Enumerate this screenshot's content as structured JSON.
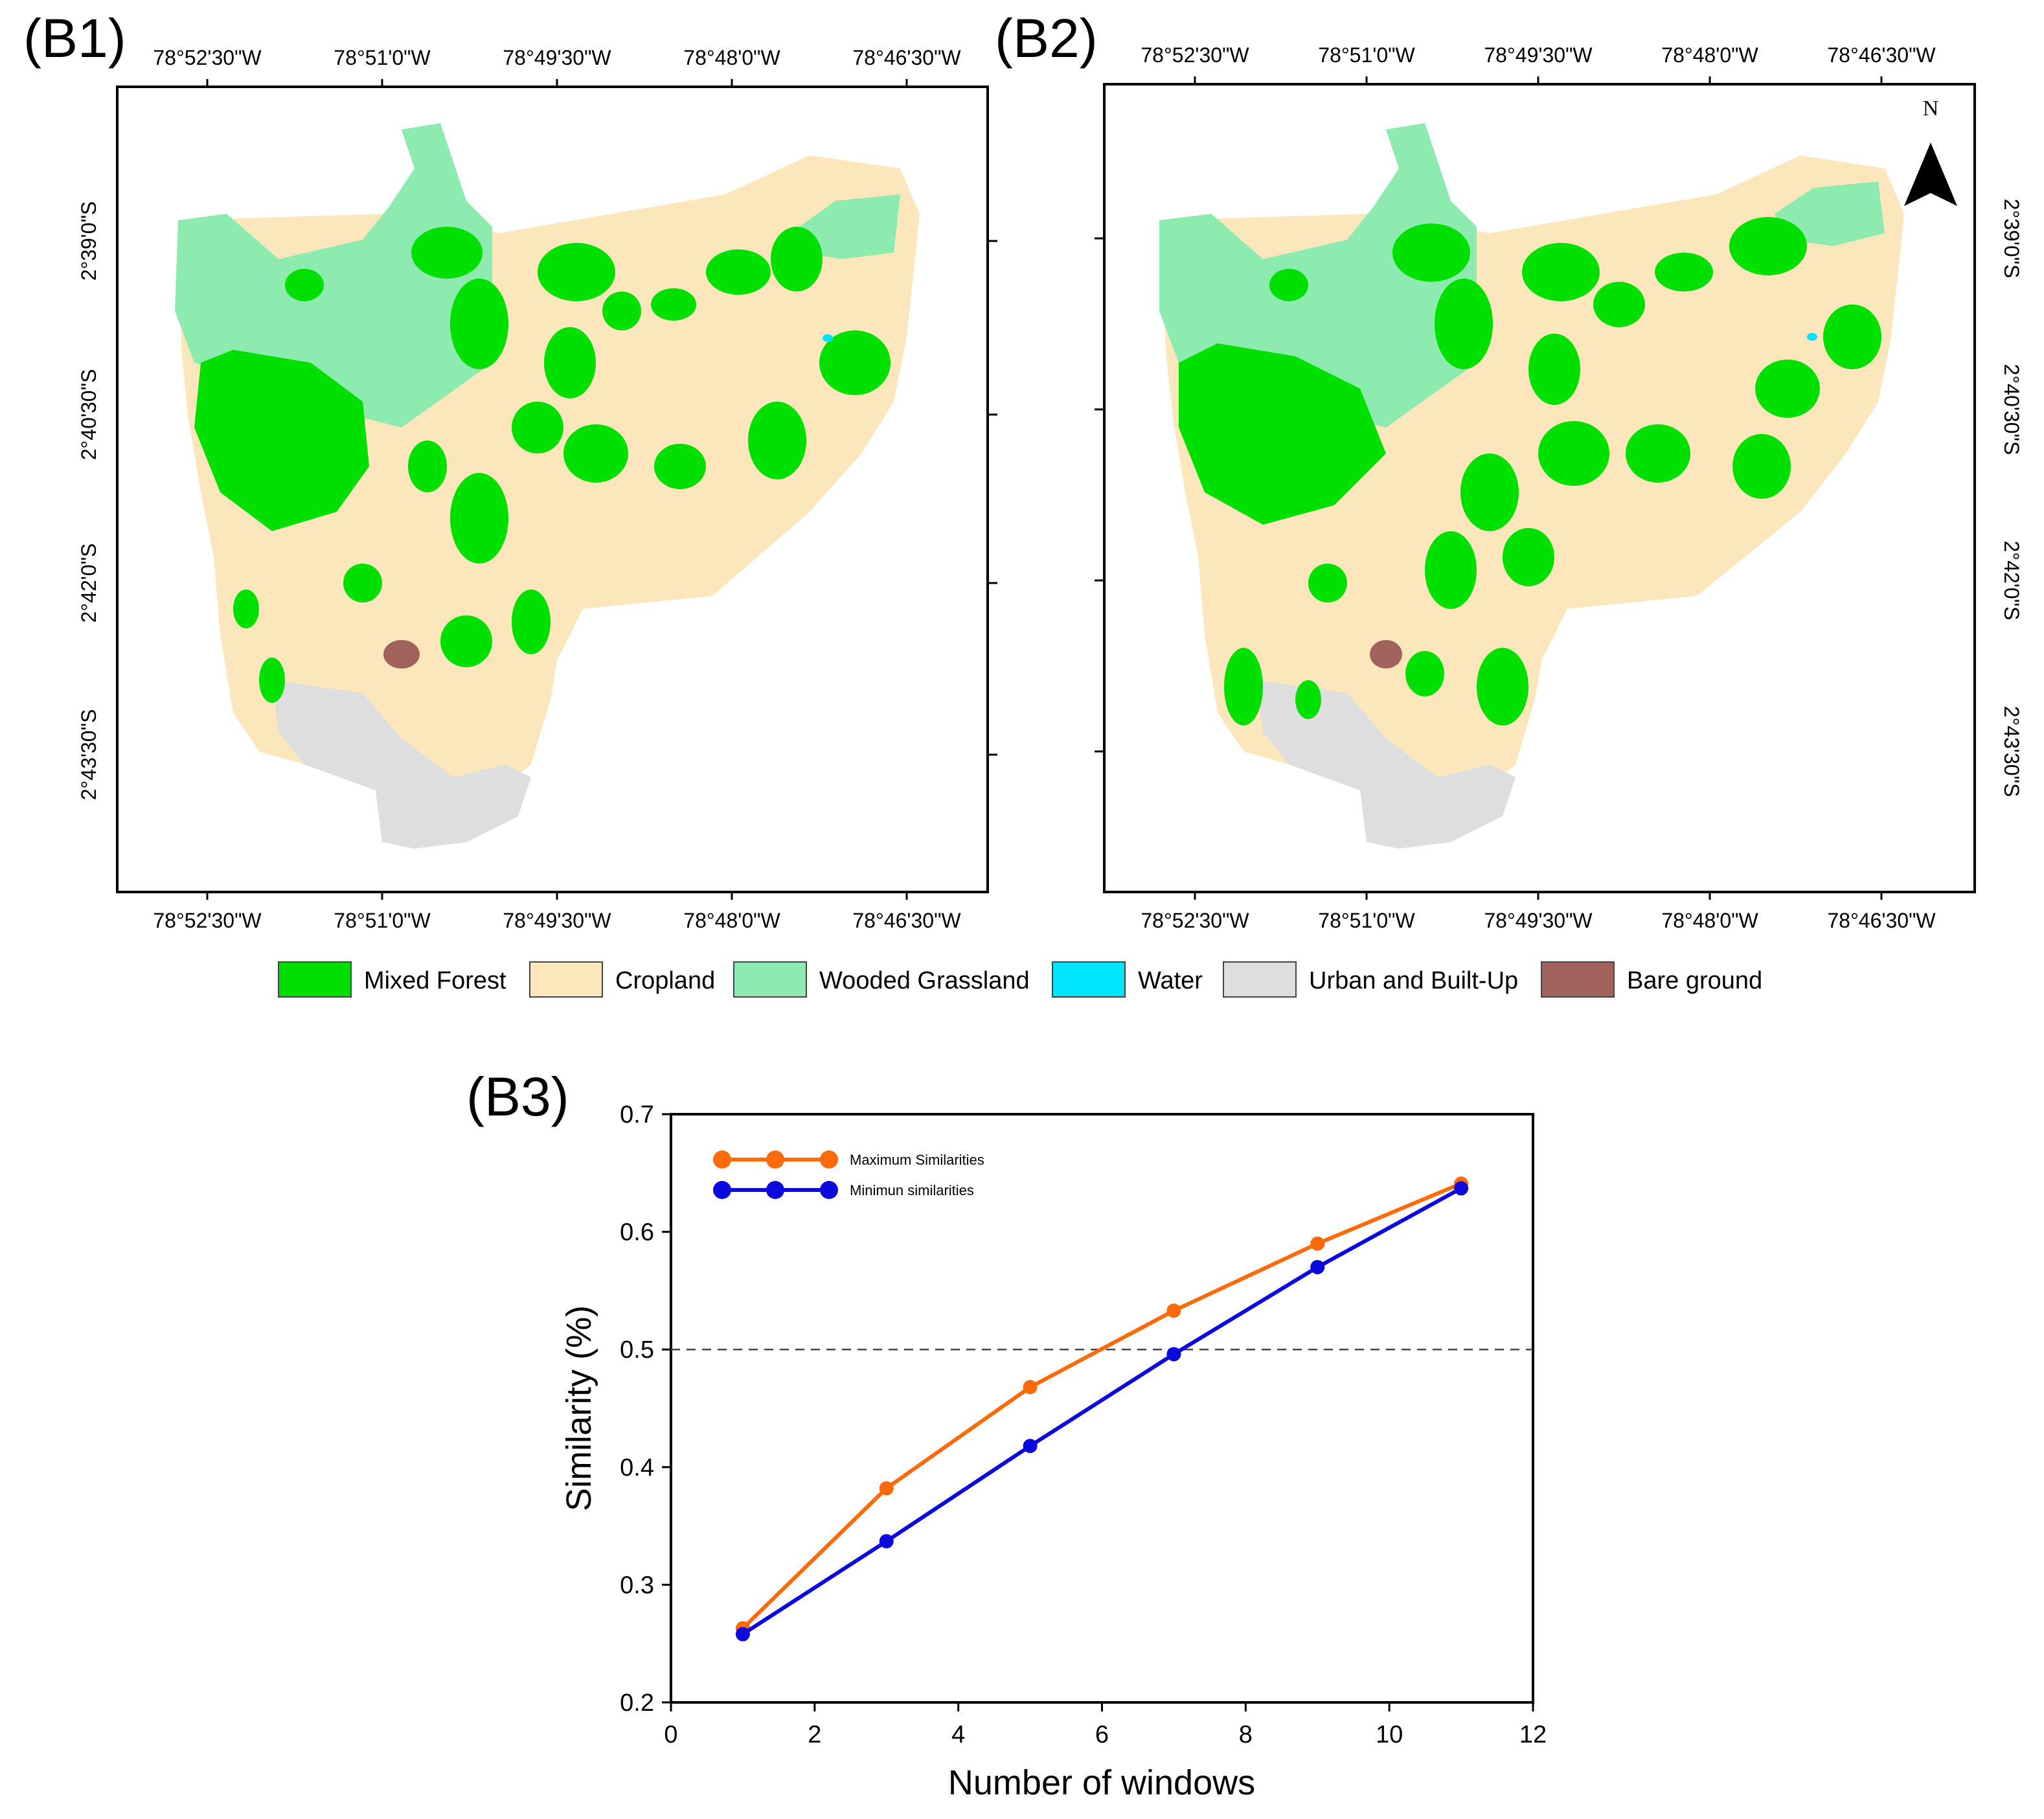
{
  "figure": {
    "panel_b1": "(B1)",
    "panel_b2": "(B2)",
    "panel_b3": "(B3)"
  },
  "maps": {
    "lon_labels": [
      "78°52'30\"W",
      "78°51'0\"W",
      "78°49'30\"W",
      "78°48'0\"W",
      "78°46'30\"W"
    ],
    "lat_labels": [
      "2°39'0\"S",
      "2°40'30\"S",
      "2°42'0\"S",
      "2°43'30\"S"
    ],
    "north_label": "N",
    "legend": [
      {
        "label": "Mixed Forest",
        "color": "#00E000"
      },
      {
        "label": "Cropland",
        "color": "#FCE6BC"
      },
      {
        "label": "Wooded Grassland",
        "color": "#8DEBAF"
      },
      {
        "label": "Water",
        "color": "#00E5FF"
      },
      {
        "label": "Urban and Built-Up",
        "color": "#DEDEDE"
      },
      {
        "label": "Bare ground",
        "color": "#A0625A"
      }
    ]
  },
  "chart_data": {
    "type": "line",
    "title": "",
    "xlabel": "Number of windows",
    "ylabel": "Similarity (%)",
    "xlim": [
      0,
      12
    ],
    "ylim": [
      0.2,
      0.7
    ],
    "xticks": [
      0,
      2,
      4,
      6,
      8,
      10,
      12
    ],
    "yticks": [
      0.2,
      0.3,
      0.4,
      0.5,
      0.6,
      0.7
    ],
    "x": [
      1,
      3,
      5,
      7,
      9,
      11
    ],
    "reference_line": {
      "y": 0.5,
      "style": "dashed"
    },
    "legend_position": "top-left",
    "series": [
      {
        "name": "Maximum Similarities",
        "color": "#FF6A0A",
        "values": [
          0.263,
          0.382,
          0.468,
          0.533,
          0.59,
          0.641
        ]
      },
      {
        "name": "Minimun similarities",
        "color": "#0A0ADC",
        "values": [
          0.258,
          0.337,
          0.418,
          0.496,
          0.57,
          0.637
        ]
      }
    ]
  }
}
